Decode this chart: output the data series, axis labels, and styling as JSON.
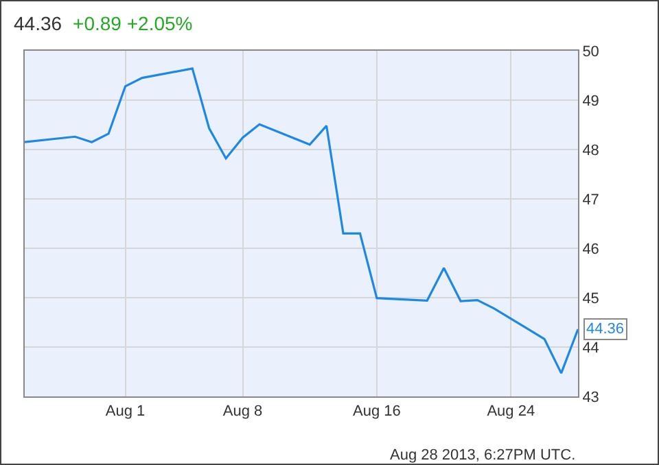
{
  "chart_data": {
    "type": "line",
    "title": "44.36",
    "subtitle": "+0.89  +2.05%",
    "x": [
      "2013-07-26",
      "2013-07-29",
      "2013-07-30",
      "2013-07-31",
      "2013-08-01",
      "2013-08-02",
      "2013-08-05",
      "2013-08-06",
      "2013-08-07",
      "2013-08-08",
      "2013-08-09",
      "2013-08-12",
      "2013-08-13",
      "2013-08-14",
      "2013-08-15",
      "2013-08-16",
      "2013-08-19",
      "2013-08-20",
      "2013-08-21",
      "2013-08-22",
      "2013-08-23",
      "2013-08-26",
      "2013-08-27",
      "2013-08-28"
    ],
    "series": [
      {
        "color": "#1e88e5",
        "values": [
          48.15,
          48.26,
          48.15,
          48.32,
          49.28,
          49.45,
          49.64,
          48.43,
          47.82,
          48.24,
          48.51,
          48.1,
          48.48,
          46.3,
          46.3,
          44.99,
          44.94,
          45.6,
          44.93,
          44.95,
          44.78,
          44.16,
          43.47,
          44.36
        ],
        "value_labels": [
          null,
          null,
          null,
          null,
          null,
          null,
          null,
          null,
          null,
          null,
          null,
          null,
          null,
          null,
          null,
          null,
          null,
          null,
          null,
          null,
          null,
          null,
          null,
          "44.36"
        ]
      }
    ],
    "xlim": [
      "2013-07-26",
      "2013-08-28"
    ],
    "xticks": [
      {
        "value": "2013-08-01",
        "label": "Aug 1"
      },
      {
        "value": "2013-08-08",
        "label": "Aug 8"
      },
      {
        "value": "2013-08-16",
        "label": "Aug 16"
      },
      {
        "value": "2013-08-24",
        "label": "Aug 24"
      }
    ],
    "ylim": [
      43,
      50
    ],
    "yticks": [
      43,
      44,
      45,
      46,
      47,
      48,
      49,
      50
    ],
    "grid": true,
    "marker": "none",
    "line_style": "solid",
    "annotations": [
      "Aug 28 2013, 6:27PM UTC."
    ]
  }
}
